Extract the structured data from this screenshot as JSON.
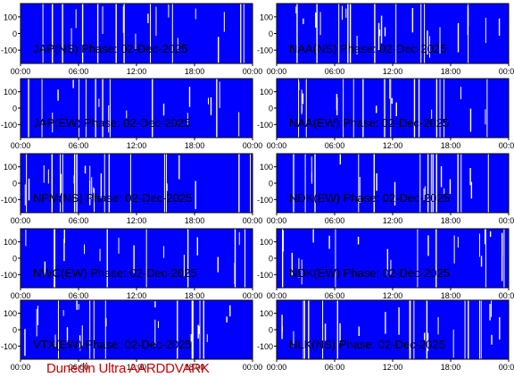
{
  "footer": "Dunedin Ultra AARDDVARK",
  "chart_data": [
    {
      "type": "line",
      "title": "JAP(NS) Phase: 02-Dec-2025",
      "x": [
        "00:00",
        "06:00",
        "12:00",
        "18:00",
        "00:00"
      ],
      "yticks": [
        100,
        0,
        -100
      ],
      "ylim": [
        -180,
        180
      ],
      "fill_color": "#0000ff",
      "line_color": "#ffffff"
    },
    {
      "type": "line",
      "title": "NAA(NS) Phase: 02-Dec-2025",
      "x": [
        "00:00",
        "06:00",
        "12:00",
        "18:00",
        "00:00"
      ],
      "yticks": [
        100,
        0,
        -100
      ],
      "ylim": [
        -180,
        180
      ],
      "fill_color": "#0000ff",
      "line_color": "#ffffff"
    },
    {
      "type": "line",
      "title": "JAP(EW) Phase: 02-Dec-2025",
      "x": [
        "00:00",
        "06:00",
        "12:00",
        "18:00",
        "00:00"
      ],
      "yticks": [
        100,
        0,
        -100
      ],
      "ylim": [
        -180,
        180
      ],
      "fill_color": "#0000ff",
      "line_color": "#ffffff"
    },
    {
      "type": "line",
      "title": "NAA(EW) Phase: 02-Dec-2025",
      "x": [
        "00:00",
        "06:00",
        "12:00",
        "18:00",
        "00:00"
      ],
      "yticks": [
        100,
        0,
        -100
      ],
      "ylim": [
        -180,
        180
      ],
      "fill_color": "#0000ff",
      "line_color": "#ffffff"
    },
    {
      "type": "line",
      "title": "NPM(NS) Phase: 02-Dec-2025",
      "x": [
        "00:00",
        "06:00",
        "12:00",
        "18:00",
        "00:00"
      ],
      "yticks": [
        100,
        0,
        -100
      ],
      "ylim": [
        -180,
        180
      ],
      "fill_color": "#0000ff",
      "line_color": "#ffffff"
    },
    {
      "type": "line",
      "title": "NDK(EW) Phase: 02-Dec-2025",
      "x": [
        "00:00",
        "06:00",
        "12:00",
        "18:00",
        "00:00"
      ],
      "yticks": [
        100,
        0,
        -100
      ],
      "ylim": [
        -180,
        180
      ],
      "fill_color": "#0000ff",
      "line_color": "#ffffff"
    },
    {
      "type": "line",
      "title": "NWC(EW) Phase: 02-Dec-2025",
      "x": [
        "00:00",
        "06:00",
        "12:00",
        "18:00",
        "00:00"
      ],
      "yticks": [
        100,
        0,
        -100
      ],
      "ylim": [
        -180,
        180
      ],
      "fill_color": "#0000ff",
      "line_color": "#ffffff"
    },
    {
      "type": "line",
      "title": "NDK(EW) Phase: 02-Dec-2025",
      "x": [
        "00:00",
        "06:00",
        "12:00",
        "18:00",
        "00:00"
      ],
      "yticks": [
        100,
        0,
        -100
      ],
      "ylim": [
        -180,
        180
      ],
      "fill_color": "#0000ff",
      "line_color": "#ffffff"
    },
    {
      "type": "line",
      "title": "VTX(EW) Phase: 02-Dec-2025",
      "x": [
        "00:00",
        "06:00",
        "12:00",
        "18:00",
        "00:00"
      ],
      "yticks": [
        100,
        0,
        -100
      ],
      "ylim": [
        -180,
        180
      ],
      "fill_color": "#0000ff",
      "line_color": "#ffffff"
    },
    {
      "type": "line",
      "title": "NLK(NS) Phase: 02-Dec-2025",
      "x": [
        "00:00",
        "06:00",
        "12:00",
        "18:00",
        "00:00"
      ],
      "yticks": [
        100,
        0,
        -100
      ],
      "ylim": [
        -180,
        180
      ],
      "fill_color": "#0000ff",
      "line_color": "#ffffff"
    }
  ]
}
